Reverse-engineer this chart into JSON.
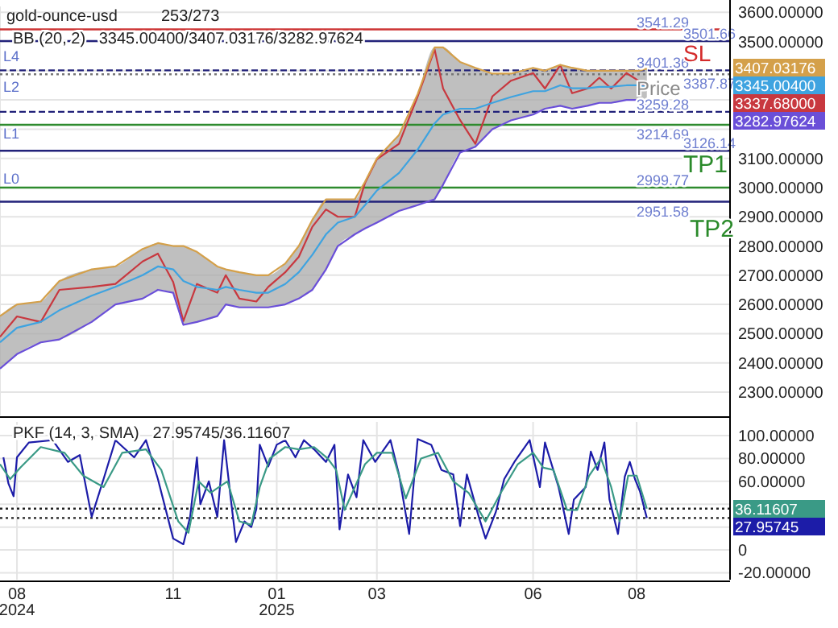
{
  "chart_data": [
    {
      "type": "line",
      "title": "gold-ounce-usd",
      "subtitle": "253/273",
      "annotations": [
        "BB (20, 2)   3345.00400/3407.03176/3282.97624",
        "SL",
        "TP1",
        "TP2",
        "Price",
        "L4",
        "L2",
        "L1",
        "L0",
        "3407.03176",
        "3345.00400",
        "3337.68000",
        "3282.97624"
      ],
      "x": [
        "2024-07-22",
        "2024-08-01",
        "2024-08-15",
        "2024-08-26",
        "2024-09-14",
        "2024-09-28",
        "2024-10-14",
        "2024-10-23",
        "2024-11-01",
        "2024-11-07",
        "2024-11-15",
        "2024-11-27",
        "2024-12-02",
        "2024-12-10",
        "2024-12-20",
        "2024-12-27",
        "2025-01-06",
        "2025-01-14",
        "2025-01-22",
        "2025-01-30",
        "2025-02-06",
        "2025-02-16",
        "2025-02-22",
        "2025-03-01",
        "2025-03-14",
        "2025-03-25",
        "2025-04-04",
        "2025-04-09",
        "2025-04-19",
        "2025-04-28",
        "2025-05-08",
        "2025-05-19",
        "2025-06-01",
        "2025-06-08",
        "2025-06-17",
        "2025-06-24",
        "2025-07-03",
        "2025-07-10",
        "2025-07-17",
        "2025-07-26",
        "2025-08-02",
        "2025-08-07"
      ],
      "series": [
        {
          "color": "#c8383f",
          "values": [
            2489,
            2559,
            2540,
            2650,
            2660,
            2670,
            2747,
            2774,
            2677,
            2543,
            2670,
            2640,
            2700,
            2620,
            2610,
            2660,
            2710,
            2763,
            2866,
            2925,
            2900,
            2900,
            3016,
            3097,
            3150,
            3312,
            3473,
            3339,
            3231,
            3150,
            3312,
            3366,
            3392,
            3339,
            3419,
            3323,
            3339,
            3376,
            3339,
            3392,
            3366,
            3337.68
          ]
        },
        {
          "color": "#d4a04a",
          "values": [
            2560,
            2600,
            2610,
            2680,
            2720,
            2730,
            2790,
            2810,
            2800,
            2800,
            2780,
            2730,
            2720,
            2710,
            2700,
            2700,
            2740,
            2800,
            2890,
            2960,
            2960,
            2960,
            3020,
            3100,
            3180,
            3320,
            3480,
            3480,
            3430,
            3410,
            3390,
            3390,
            3410,
            3400,
            3420,
            3410,
            3400,
            3400,
            3400,
            3400,
            3400,
            3407.03176
          ]
        },
        {
          "color": "#3ea3e0",
          "values": [
            2470,
            2520,
            2540,
            2580,
            2630,
            2660,
            2700,
            2730,
            2720,
            2680,
            2660,
            2650,
            2660,
            2650,
            2640,
            2640,
            2670,
            2710,
            2770,
            2840,
            2880,
            2900,
            2940,
            2990,
            3050,
            3130,
            3220,
            3250,
            3270,
            3270,
            3290,
            3310,
            3330,
            3330,
            3350,
            3340,
            3340,
            3345,
            3345,
            3350,
            3350,
            3345.004
          ],
          "lower": [
            2380,
            2430,
            2470,
            2480,
            2540,
            2600,
            2620,
            2650,
            2640,
            2530,
            2540,
            2560,
            2600,
            2590,
            2590,
            2590,
            2600,
            2620,
            2650,
            2720,
            2800,
            2840,
            2860,
            2880,
            2920,
            2940,
            2960,
            3010,
            3120,
            3140,
            3200,
            3230,
            3250,
            3270,
            3280,
            3270,
            3280,
            3290,
            3290,
            3300,
            3300,
            3282.97624
          ],
          "upper": [
            2560,
            2600,
            2610,
            2680,
            2720,
            2730,
            2790,
            2810,
            2800,
            2800,
            2780,
            2730,
            2720,
            2710,
            2700,
            2700,
            2740,
            2800,
            2890,
            2960,
            2960,
            2960,
            3020,
            3100,
            3180,
            3320,
            3480,
            3480,
            3430,
            3410,
            3390,
            3390,
            3410,
            3400,
            3420,
            3410,
            3400,
            3400,
            3400,
            3400,
            3400,
            3407.03176
          ]
        },
        {
          "color": "#6a4fd8",
          "values": [
            2380,
            2430,
            2470,
            2480,
            2540,
            2600,
            2620,
            2650,
            2640,
            2530,
            2540,
            2560,
            2600,
            2590,
            2590,
            2590,
            2600,
            2620,
            2650,
            2720,
            2800,
            2840,
            2860,
            2880,
            2920,
            2940,
            2960,
            3010,
            3120,
            3140,
            3200,
            3230,
            3250,
            3270,
            3280,
            3270,
            3280,
            3290,
            3290,
            3300,
            3300,
            3282.97624
          ]
        }
      ],
      "ref_lines": [
        {
          "axis": "y",
          "value": 3541.29,
          "label": "3541.29",
          "color": "#cc3333",
          "line_style": "solid"
        },
        {
          "axis": "y",
          "value": 3501.66,
          "label": "3501.66",
          "color": "#22227a",
          "line_style": "solid"
        },
        {
          "axis": "y",
          "value": 3401.36,
          "label": "3401.36",
          "color": "#22227a",
          "line_style": "dashed"
        },
        {
          "axis": "y",
          "value": 3387.87,
          "label": "3387.87",
          "color": "#777777",
          "line_style": "dotted"
        },
        {
          "axis": "y",
          "value": 3259.28,
          "label": "3259.28",
          "color": "#22227a",
          "line_style": "dashed"
        },
        {
          "axis": "y",
          "value": 3214.69,
          "label": "3214.69",
          "color": "#2e8b2e",
          "line_style": "solid"
        },
        {
          "axis": "y",
          "value": 3126.14,
          "label": "3126.14",
          "color": "#22227a",
          "line_style": "solid"
        },
        {
          "axis": "y",
          "value": 2999.77,
          "label": "2999.77",
          "color": "#2e8b2e",
          "line_style": "solid"
        },
        {
          "axis": "y",
          "value": 2951.58,
          "label": "2951.58",
          "color": "#22227a",
          "line_style": "solid"
        }
      ],
      "xlim": [
        "2024-07-22",
        "2025-09-25"
      ],
      "xticks": [
        "2024-08-01",
        "2024-11-01",
        "2025-01-01",
        "2025-03-01",
        "2025-06-01",
        "2025-08-01"
      ],
      "ylim": [
        2220,
        3620
      ],
      "yticks": [
        {
          "value": 2300,
          "label": "2300.00000"
        },
        {
          "value": 2400,
          "label": "2400.00000"
        },
        {
          "value": 2500,
          "label": "2500.00000"
        },
        {
          "value": 2600,
          "label": "2600.00000"
        },
        {
          "value": 2700,
          "label": "2700.00000"
        },
        {
          "value": 2800,
          "label": "2800.00000"
        },
        {
          "value": 2900,
          "label": "2900.00000"
        },
        {
          "value": 3000,
          "label": "3000.00000"
        },
        {
          "value": 3100,
          "label": "3100.00000"
        },
        {
          "value": 3200,
          "label": null
        },
        {
          "value": 3300,
          "label": null
        },
        {
          "value": 3400,
          "label": null
        },
        {
          "value": 3500,
          "label": "3500.00000"
        },
        {
          "value": 3600,
          "label": "3600.00000"
        }
      ],
      "tick_labels": "y",
      "grid": true,
      "marker": "none",
      "line_style": "solid"
    },
    {
      "type": "line",
      "annotations": [
        "PKF (14, 3, SMA)   27.95745/36.11607",
        "36.11607",
        "27.95745"
      ],
      "series": [
        {
          "color": "#1c1ca8",
          "x": [
            "2024-07-24",
            "2024-07-27",
            "2024-07-30",
            "2024-08-01",
            "2024-08-08",
            "2024-08-22",
            "2024-08-31",
            "2024-09-07",
            "2024-09-14",
            "2024-09-21",
            "2024-09-28",
            "2024-10-09",
            "2024-10-16",
            "2024-10-23",
            "2024-11-01",
            "2024-11-07",
            "2024-11-11",
            "2024-11-15",
            "2024-11-17",
            "2024-11-22",
            "2024-11-27",
            "2024-12-01",
            "2024-12-05",
            "2024-12-08",
            "2024-12-13",
            "2024-12-17",
            "2024-12-20",
            "2024-12-22",
            "2024-12-27",
            "2025-01-01",
            "2025-01-06",
            "2025-01-12",
            "2025-01-17",
            "2025-01-23",
            "2025-01-30",
            "2025-02-04",
            "2025-02-07",
            "2025-02-12",
            "2025-02-17",
            "2025-02-21",
            "2025-02-28",
            "2025-03-09",
            "2025-03-14",
            "2025-03-20",
            "2025-03-25",
            "2025-04-02",
            "2025-04-08",
            "2025-04-15",
            "2025-04-19",
            "2025-04-23",
            "2025-04-30",
            "2025-05-04",
            "2025-05-10",
            "2025-05-15",
            "2025-05-21",
            "2025-05-30",
            "2025-06-05",
            "2025-06-08",
            "2025-06-16",
            "2025-06-22",
            "2025-06-25",
            "2025-07-02",
            "2025-07-05",
            "2025-07-09",
            "2025-07-13",
            "2025-07-16",
            "2025-07-21",
            "2025-07-25",
            "2025-07-28",
            "2025-07-31",
            "2025-08-03",
            "2025-08-07"
          ],
          "values": [
            81,
            58,
            47,
            81,
            94,
            96,
            77,
            83,
            29,
            62,
            96,
            81,
            96,
            62,
            10,
            5,
            29,
            81,
            40,
            60,
            29,
            96,
            44,
            7,
            25,
            20,
            36,
            92,
            73,
            92,
            96,
            81,
            96,
            88,
            77,
            92,
            18,
            66,
            46,
            96,
            77,
            96,
            66,
            14,
            97,
            92,
            70,
            66,
            21,
            66,
            29,
            10,
            33,
            62,
            77,
            96,
            55,
            94,
            55,
            14,
            44,
            55,
            86,
            70,
            94,
            44,
            14,
            64,
            77,
            62,
            51,
            27.95745
          ]
        },
        {
          "color": "#3a9a86",
          "x": [
            "2024-07-22",
            "2024-07-28",
            "2024-08-03",
            "2024-08-15",
            "2024-08-29",
            "2024-09-09",
            "2024-09-21",
            "2024-10-02",
            "2024-10-16",
            "2024-10-25",
            "2024-11-04",
            "2024-11-10",
            "2024-11-16",
            "2024-11-23",
            "2024-11-28",
            "2024-12-03",
            "2024-12-10",
            "2024-12-17",
            "2024-12-22",
            "2024-12-28",
            "2025-01-06",
            "2025-01-14",
            "2025-01-23",
            "2025-01-31",
            "2025-02-05",
            "2025-02-10",
            "2025-02-16",
            "2025-02-22",
            "2025-03-01",
            "2025-03-10",
            "2025-03-18",
            "2025-03-27",
            "2025-04-06",
            "2025-04-15",
            "2025-04-24",
            "2025-05-04",
            "2025-05-13",
            "2025-05-23",
            "2025-06-01",
            "2025-06-07",
            "2025-06-13",
            "2025-06-21",
            "2025-06-27",
            "2025-07-04",
            "2025-07-11",
            "2025-07-17",
            "2025-07-22",
            "2025-07-27",
            "2025-08-01",
            "2025-08-07"
          ],
          "values": [
            75,
            62,
            72,
            90,
            85,
            65,
            55,
            85,
            88,
            70,
            25,
            15,
            60,
            50,
            55,
            60,
            25,
            22,
            55,
            80,
            90,
            88,
            90,
            80,
            70,
            35,
            55,
            75,
            85,
            85,
            45,
            80,
            85,
            60,
            50,
            25,
            50,
            75,
            85,
            72,
            70,
            35,
            35,
            65,
            80,
            55,
            25,
            65,
            65,
            36.11607
          ]
        }
      ],
      "ref_lines": [
        {
          "axis": "y",
          "value": 36.11607,
          "color": "#222222",
          "line_style": "dotted"
        },
        {
          "axis": "y",
          "value": 27.95745,
          "color": "#222222",
          "line_style": "dotted"
        }
      ],
      "xlim": [
        "2024-07-22",
        "2025-09-25"
      ],
      "xticks": [
        {
          "value": "2024-08-01",
          "label": "08\n2024"
        },
        {
          "value": "2024-11-01",
          "label": "11"
        },
        {
          "value": "2025-01-01",
          "label": "01\n2025"
        },
        {
          "value": "2025-03-01",
          "label": "03"
        },
        {
          "value": "2025-06-01",
          "label": "06"
        },
        {
          "value": "2025-08-01",
          "label": "08"
        }
      ],
      "ylim": [
        -26,
        112
      ],
      "yticks": [
        {
          "value": 100,
          "label": "100.00000"
        },
        {
          "value": 80,
          "label": "80.00000"
        },
        {
          "value": 60,
          "label": "60.00000"
        },
        {
          "value": 40,
          "label": null
        },
        {
          "value": 20,
          "label": null
        },
        {
          "value": 0,
          "label": "0"
        },
        {
          "value": -20,
          "label": "-20.00000"
        }
      ],
      "grid": true,
      "marker": "none",
      "line_style": "solid"
    }
  ]
}
